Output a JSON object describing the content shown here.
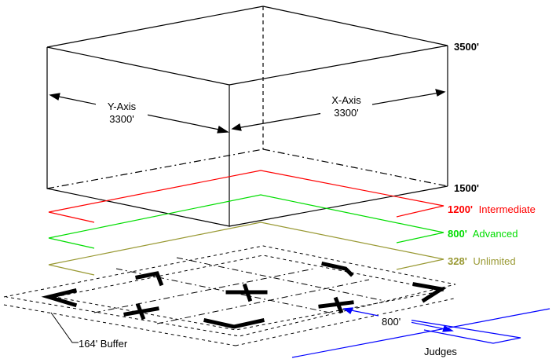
{
  "box": {
    "top_altitude": "3500'",
    "bottom_altitude": "1500'",
    "y_axis_name": "Y-Axis",
    "y_axis_length": "3300'",
    "x_axis_name": "X-Axis",
    "x_axis_length": "3300'"
  },
  "deck_levels": [
    {
      "altitude": "1200'",
      "name": "Intermediate",
      "color": "#ff0000"
    },
    {
      "altitude": "800'",
      "name": "Advanced",
      "color": "#00dd00"
    },
    {
      "altitude": "328'",
      "name": "Unlimited",
      "color": "#999933"
    }
  ],
  "buffer_label": "164' Buffer",
  "judges": {
    "distance": "800'",
    "label": "Judges",
    "color": "#0000ff"
  },
  "colors": {
    "outline": "#000000",
    "text": "#000000"
  }
}
